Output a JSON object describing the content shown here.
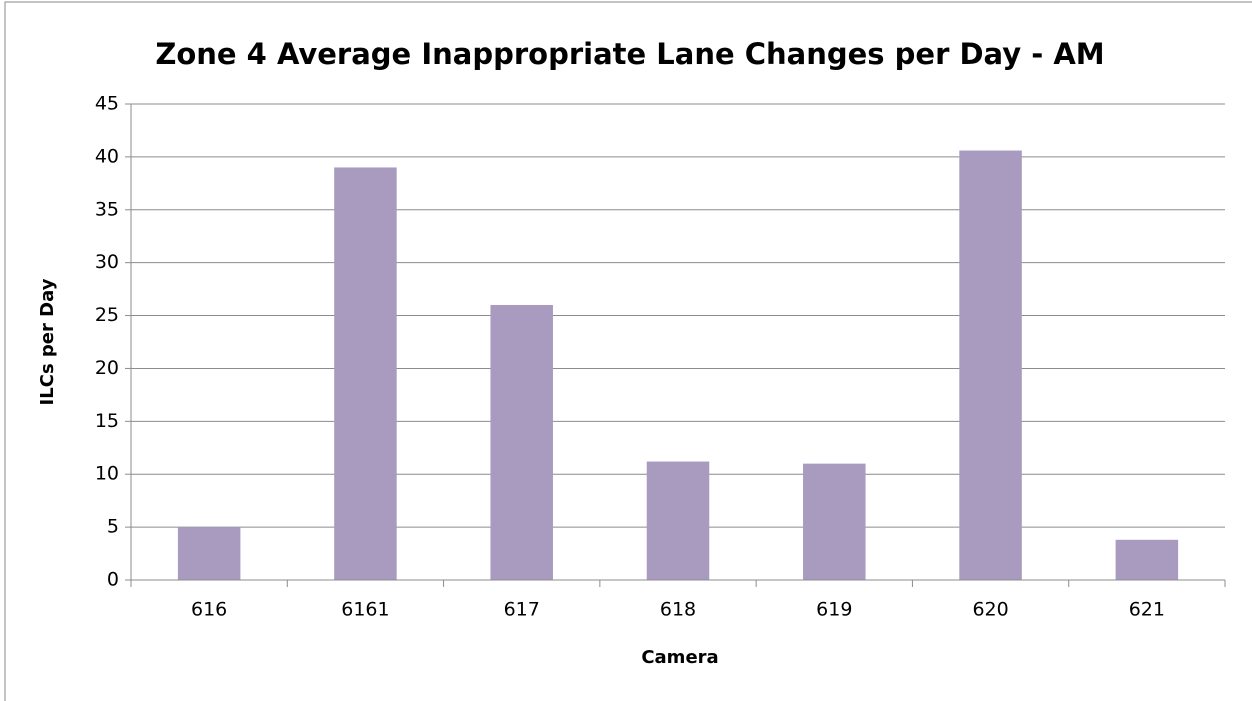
{
  "chart_data": {
    "type": "bar",
    "title": "Zone 4 Average Inappropriate Lane Changes per Day - AM",
    "x_label": "Camera",
    "y_label": "ILCs per Day",
    "categories": [
      "616",
      "6161",
      "617",
      "618",
      "619",
      "620",
      "621"
    ],
    "values": [
      5,
      39,
      26,
      11.2,
      11,
      40.6,
      3.8
    ],
    "color": "#a99bbf",
    "ylim": [
      0,
      45
    ],
    "yticks": [
      0,
      5,
      10,
      15,
      20,
      25,
      30,
      35,
      40,
      45
    ],
    "grid": true
  }
}
